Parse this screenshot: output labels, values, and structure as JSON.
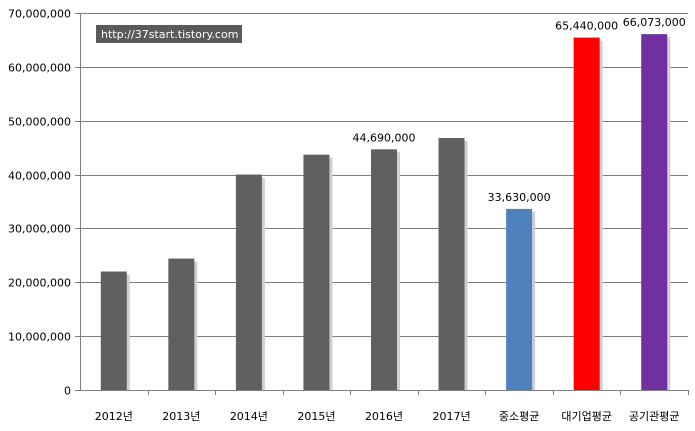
{
  "chart_data": {
    "type": "bar",
    "categories": [
      "2012년",
      "2013년",
      "2014년",
      "2015년",
      "2016년",
      "2017년",
      "중소평균",
      "대기업평균",
      "공기관평균"
    ],
    "values": [
      22000000,
      24400000,
      40000000,
      43700000,
      44690000,
      46800000,
      33630000,
      65440000,
      66073000
    ],
    "colors": [
      "#606060",
      "#606060",
      "#606060",
      "#606060",
      "#606060",
      "#606060",
      "#4f81bd",
      "#ff0000",
      "#7030a0"
    ],
    "data_labels": [
      "",
      "",
      "",
      "",
      "44,690,000",
      "",
      "33,630,000",
      "65,440,000",
      "66,073,000"
    ],
    "y_ticks": [
      "0",
      "10,000,000",
      "20,000,000",
      "30,000,000",
      "40,000,000",
      "50,000,000",
      "60,000,000",
      "70,000,000"
    ],
    "ylim": [
      0,
      70000000
    ],
    "grid": true,
    "legend": "none",
    "watermark": "http://37start.tistory.com"
  }
}
